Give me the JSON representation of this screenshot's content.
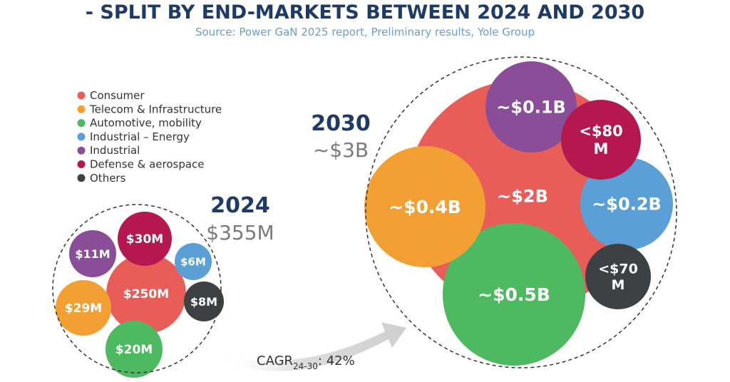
{
  "chart_data": {
    "type": "bubble",
    "title": "- SPLIT BY END-MARKETS BETWEEN 2024 AND 2030",
    "source": "Source: Power GaN 2025 report, Preliminary results, Yole Group",
    "legend": [
      {
        "name": "Consumer",
        "color": "#e85d58"
      },
      {
        "name": "Telecom & Infrastructure",
        "color": "#f2a033"
      },
      {
        "name": "Automotive, mobility",
        "color": "#4db961"
      },
      {
        "name": "Industrial – Energy",
        "color": "#5a9fd6"
      },
      {
        "name": "Industrial",
        "color": "#8a4d97"
      },
      {
        "name": "Defense & aerospace",
        "color": "#b5174f"
      },
      {
        "name": "Others",
        "color": "#3d4143"
      }
    ],
    "groups": [
      {
        "year": "2024",
        "total": "$355M",
        "bubbles": [
          {
            "segment": "Consumer",
            "label": "$250M",
            "value_musd": 250,
            "color": "#e85d58"
          },
          {
            "segment": "Defense & aerospace",
            "label": "$30M",
            "value_musd": 30,
            "color": "#b5174f"
          },
          {
            "segment": "Telecom & Infrastructure",
            "label": "$29M",
            "value_musd": 29,
            "color": "#f2a033"
          },
          {
            "segment": "Automotive, mobility",
            "label": "$20M",
            "value_musd": 20,
            "color": "#4db961"
          },
          {
            "segment": "Industrial",
            "label": "$11M",
            "value_musd": 11,
            "color": "#8a4d97"
          },
          {
            "segment": "Others",
            "label": "$8M",
            "value_musd": 8,
            "color": "#3d4143"
          },
          {
            "segment": "Industrial – Energy",
            "label": "$6M",
            "value_musd": 6,
            "color": "#5a9fd6"
          }
        ]
      },
      {
        "year": "2030",
        "total": "~$3B",
        "bubbles": [
          {
            "segment": "Consumer",
            "label": "~$2B",
            "value_musd": 2000,
            "color": "#e85d58"
          },
          {
            "segment": "Automotive, mobility",
            "label": "~$0.5B",
            "value_musd": 500,
            "color": "#4db961"
          },
          {
            "segment": "Telecom & Infrastructure",
            "label": "~$0.4B",
            "value_musd": 400,
            "color": "#f2a033"
          },
          {
            "segment": "Industrial – Energy",
            "label": "~$0.2B",
            "value_musd": 200,
            "color": "#5a9fd6"
          },
          {
            "segment": "Industrial",
            "label": "~$0.1B",
            "value_musd": 100,
            "color": "#8a4d97"
          },
          {
            "segment": "Defense & aerospace",
            "label": "<$80 M",
            "value_musd": 80,
            "color": "#b5174f"
          },
          {
            "segment": "Others",
            "label": "<$70 M",
            "value_musd": 70,
            "color": "#3d4143"
          }
        ]
      }
    ],
    "cagr": {
      "prefix": "CAGR",
      "subscript": "24-30",
      "value": ": 42%"
    }
  }
}
